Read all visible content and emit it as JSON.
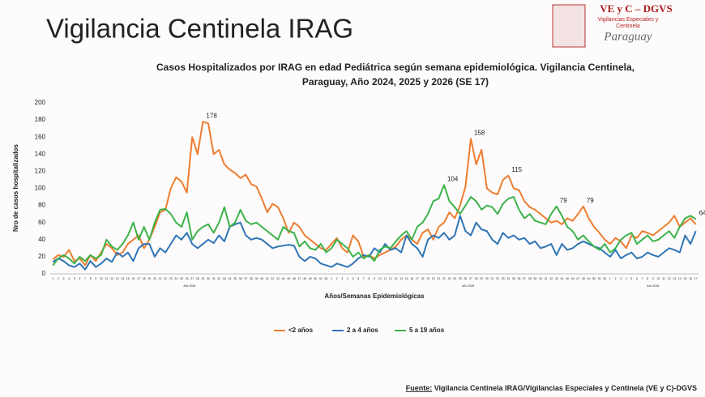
{
  "header": {
    "title": "Vigilancia Centinela IRAG"
  },
  "logo": {
    "title": "VE y C – DGVS",
    "subtitle": [
      "Vigilancias Especiales y",
      "Centinela"
    ],
    "country": "Paraguay"
  },
  "chart_data": {
    "type": "line",
    "title": [
      "Casos Hospitalizados por IRAG en edad Pediátrica según semana epidemiológica. Vigilancia Centinela,",
      "Paraguay, Año 2024, 2025 y 2026 (SE 17)"
    ],
    "y_label": "Nro de casos hospitalizados",
    "x_label": "Años/Semanas Epidemiológicas",
    "year_labels": [
      "Año 2024",
      "Año 2025",
      "Año 2026"
    ],
    "categories": [
      "1",
      "2",
      "3",
      "4",
      "5",
      "6",
      "7",
      "8",
      "9",
      "10",
      "11",
      "12",
      "13",
      "14",
      "15",
      "16",
      "17",
      "18",
      "19",
      "20",
      "21",
      "22",
      "23",
      "24",
      "25",
      "26",
      "27",
      "28",
      "29",
      "30",
      "31",
      "32",
      "33",
      "34",
      "35",
      "36",
      "37",
      "38",
      "39",
      "40",
      "41",
      "42",
      "43",
      "44",
      "45",
      "46",
      "47",
      "48",
      "49",
      "50",
      "51",
      "52",
      "1",
      "2",
      "3",
      "4",
      "5",
      "6",
      "7",
      "8",
      "9",
      "10",
      "11",
      "12",
      "13",
      "14",
      "15",
      "16",
      "17",
      "18",
      "19",
      "20",
      "21",
      "22",
      "23",
      "24",
      "25",
      "26",
      "27",
      "28",
      "29",
      "30",
      "31",
      "32",
      "33",
      "34",
      "35",
      "36",
      "37",
      "38",
      "39",
      "40",
      "41",
      "42",
      "43",
      "44",
      "45",
      "46",
      "47",
      "48",
      "49",
      "50",
      "51",
      "52",
      "1",
      "2",
      "3",
      "4",
      "5",
      "6",
      "7",
      "8",
      "9",
      "10",
      "11",
      "12",
      "13",
      "14",
      "15",
      "16",
      "17"
    ],
    "ylim": [
      0,
      200
    ],
    "yticks": [
      0,
      20,
      40,
      60,
      80,
      100,
      120,
      140,
      160,
      180,
      200
    ],
    "grid": false,
    "series": [
      {
        "name": "<2 años",
        "color": "#ed7d31",
        "values": [
          17,
          22,
          20,
          28,
          15,
          18,
          10,
          22,
          15,
          25,
          35,
          30,
          22,
          25,
          35,
          40,
          45,
          30,
          40,
          55,
          72,
          75,
          100,
          113,
          108,
          95,
          160,
          140,
          178,
          176,
          140,
          145,
          128,
          122,
          118,
          112,
          116,
          105,
          102,
          88,
          72,
          82,
          78,
          65,
          48,
          60,
          55,
          45,
          40,
          35,
          30,
          28,
          35,
          42,
          30,
          25,
          45,
          38,
          20,
          22,
          18,
          22,
          25,
          28,
          32,
          40,
          45,
          40,
          35,
          48,
          52,
          40,
          55,
          60,
          72,
          65,
          80,
          102,
          158,
          128,
          145,
          100,
          95,
          93,
          110,
          115,
          100,
          98,
          85,
          78,
          75,
          70,
          65,
          60,
          62,
          58,
          65,
          62,
          70,
          79,
          65,
          55,
          48,
          40,
          35,
          42,
          38,
          30,
          45,
          42,
          50,
          48,
          45,
          50,
          55,
          60,
          68,
          55,
          60,
          65,
          58
        ],
        "value_labels": [
          null,
          null,
          null,
          null,
          null,
          null,
          null,
          null,
          null,
          null,
          null,
          null,
          null,
          null,
          null,
          null,
          null,
          null,
          null,
          null,
          null,
          null,
          null,
          null,
          null,
          null,
          null,
          null,
          "178",
          null,
          null,
          null,
          null,
          null,
          null,
          null,
          null,
          null,
          null,
          null,
          null,
          null,
          null,
          null,
          null,
          null,
          null,
          null,
          null,
          null,
          null,
          null,
          null,
          null,
          null,
          null,
          null,
          null,
          null,
          null,
          null,
          null,
          null,
          null,
          null,
          null,
          null,
          null,
          null,
          null,
          null,
          null,
          null,
          null,
          null,
          null,
          null,
          null,
          "158",
          null,
          null,
          null,
          null,
          null,
          null,
          "115",
          null,
          null,
          null,
          null,
          null,
          null,
          null,
          null,
          null,
          null,
          null,
          null,
          null,
          "79",
          null,
          null,
          null,
          null,
          null,
          null,
          null,
          null,
          null,
          null,
          null,
          null,
          null,
          null,
          null,
          null,
          null,
          null,
          null,
          null,
          null
        ]
      },
      {
        "name": "2 a 4 años",
        "color": "#2e75b6",
        "values": [
          14,
          18,
          15,
          10,
          8,
          12,
          5,
          15,
          8,
          12,
          18,
          14,
          25,
          20,
          25,
          15,
          30,
          35,
          35,
          20,
          30,
          25,
          35,
          45,
          40,
          48,
          35,
          30,
          35,
          40,
          36,
          45,
          38,
          55,
          58,
          60,
          45,
          40,
          42,
          40,
          35,
          30,
          32,
          33,
          34,
          33,
          20,
          15,
          20,
          18,
          12,
          10,
          8,
          12,
          10,
          8,
          12,
          18,
          22,
          20,
          30,
          25,
          35,
          28,
          30,
          25,
          45,
          35,
          30,
          20,
          40,
          45,
          42,
          48,
          40,
          45,
          68,
          50,
          45,
          60,
          52,
          50,
          40,
          35,
          48,
          42,
          45,
          40,
          42,
          35,
          38,
          30,
          32,
          35,
          22,
          35,
          28,
          30,
          35,
          38,
          35,
          32,
          30,
          25,
          20,
          28,
          18,
          22,
          25,
          18,
          20,
          25,
          22,
          20,
          25,
          30,
          28,
          25,
          45,
          35,
          50
        ]
      },
      {
        "name": "5 a 19 años",
        "color": "#3cb34a",
        "values": [
          10,
          18,
          22,
          18,
          12,
          20,
          15,
          22,
          18,
          22,
          40,
          32,
          28,
          35,
          45,
          60,
          40,
          55,
          40,
          60,
          75,
          76,
          70,
          60,
          55,
          72,
          40,
          50,
          55,
          58,
          48,
          60,
          78,
          55,
          60,
          75,
          62,
          58,
          60,
          55,
          50,
          45,
          40,
          55,
          50,
          48,
          32,
          38,
          30,
          28,
          35,
          25,
          30,
          40,
          35,
          30,
          20,
          25,
          18,
          22,
          15,
          28,
          32,
          30,
          38,
          45,
          50,
          40,
          55,
          60,
          70,
          85,
          88,
          104,
          85,
          78,
          70,
          80,
          90,
          85,
          75,
          80,
          78,
          70,
          82,
          88,
          90,
          75,
          65,
          70,
          62,
          60,
          58,
          70,
          79,
          68,
          55,
          50,
          40,
          45,
          38,
          32,
          28,
          35,
          25,
          30,
          40,
          45,
          48,
          35,
          40,
          45,
          38,
          40,
          45,
          50,
          42,
          55,
          65,
          68,
          64
        ],
        "value_labels": [
          null,
          null,
          null,
          null,
          null,
          null,
          null,
          null,
          null,
          null,
          null,
          null,
          null,
          null,
          null,
          null,
          null,
          null,
          null,
          null,
          null,
          null,
          null,
          null,
          null,
          null,
          null,
          null,
          null,
          null,
          null,
          null,
          null,
          null,
          null,
          null,
          null,
          null,
          null,
          null,
          null,
          null,
          null,
          null,
          null,
          null,
          null,
          null,
          null,
          null,
          null,
          null,
          null,
          null,
          null,
          null,
          null,
          null,
          null,
          null,
          null,
          null,
          null,
          null,
          null,
          null,
          null,
          null,
          null,
          null,
          null,
          null,
          null,
          "104",
          null,
          null,
          null,
          null,
          null,
          null,
          null,
          null,
          null,
          null,
          null,
          null,
          null,
          null,
          null,
          null,
          null,
          null,
          null,
          null,
          "79",
          null,
          null,
          null,
          null,
          null,
          null,
          null,
          null,
          null,
          null,
          null,
          null,
          null,
          null,
          null,
          null,
          null,
          null,
          null,
          null,
          null,
          null,
          null,
          null,
          null,
          "64"
        ]
      }
    ]
  },
  "footer": {
    "source_label": "Fuente:",
    "source": " Vigilancia  Centinela IRAG/Vigilancias Especiales y Centinela (VE y C)-DGVS"
  }
}
